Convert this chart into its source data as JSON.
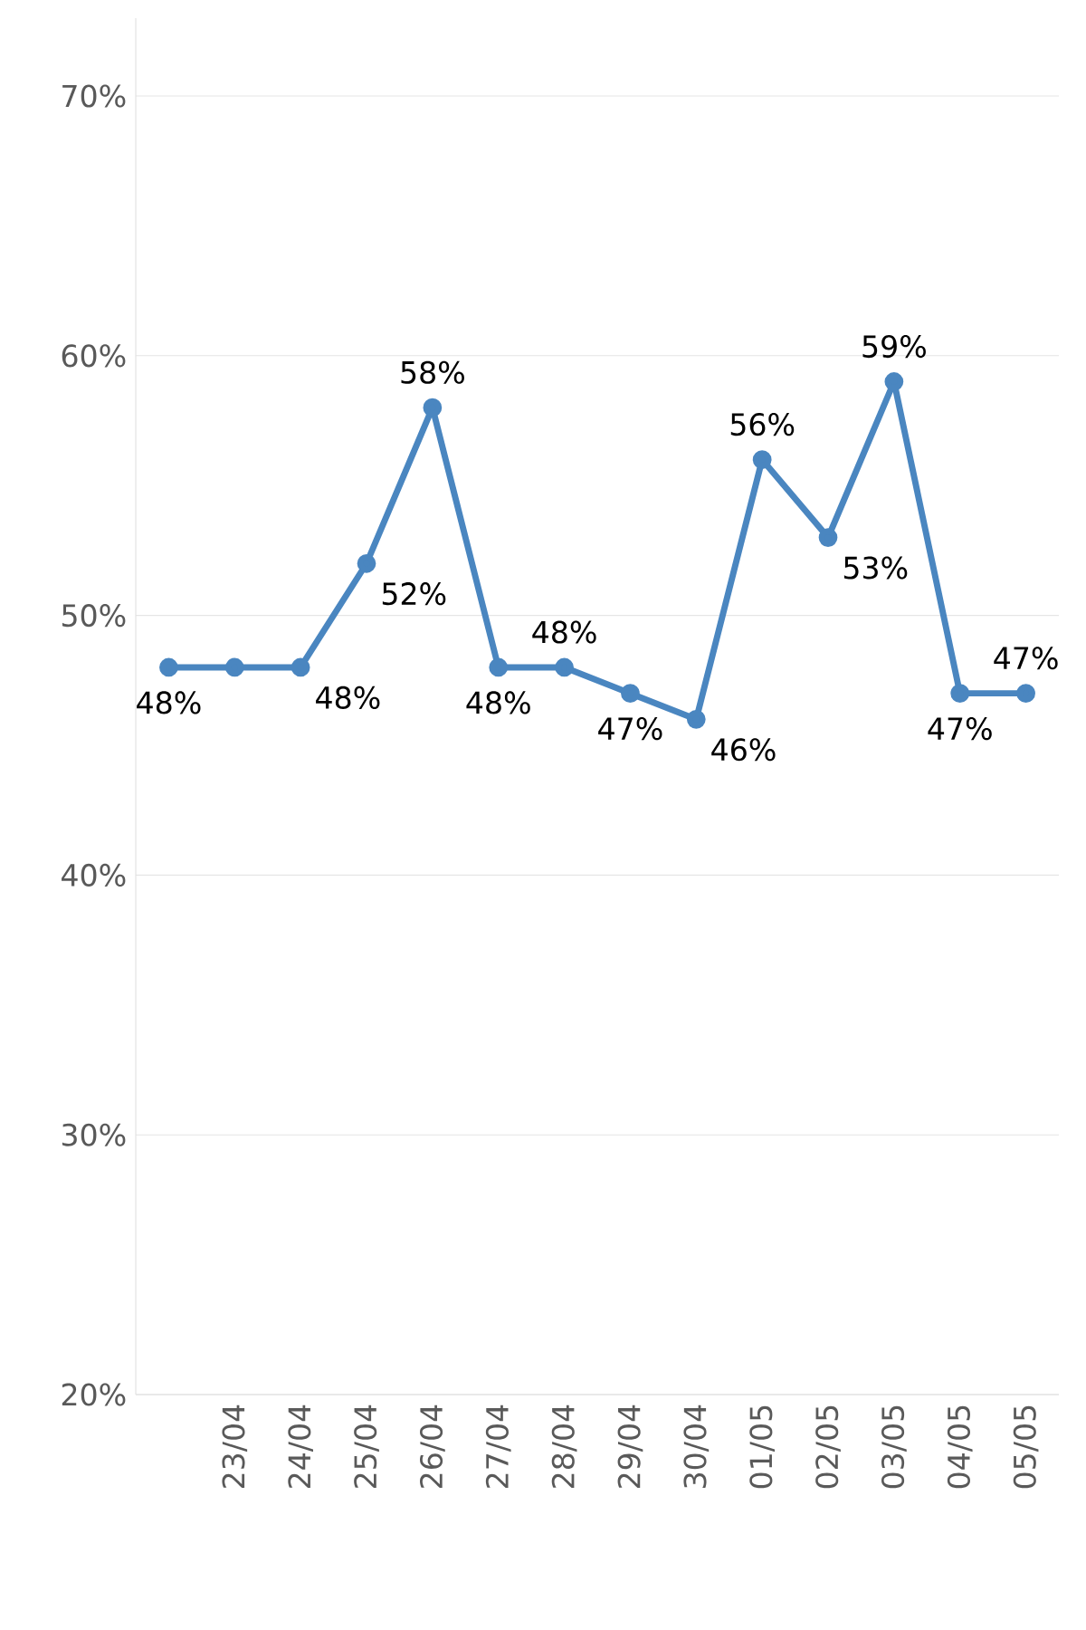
{
  "chart_data": {
    "type": "line",
    "categories": [
      null,
      "23/04",
      "24/04",
      "25/04",
      "26/04",
      "27/04",
      "28/04",
      "29/04",
      "30/04",
      "01/05",
      "02/05",
      "03/05",
      "04/05",
      "05/05"
    ],
    "values": [
      48,
      48,
      48,
      52,
      58,
      48,
      48,
      47,
      46,
      56,
      53,
      59,
      47,
      47
    ],
    "value_labels": [
      "48%",
      null,
      "48%",
      "52%",
      "58%",
      "48%",
      "48%",
      "47%",
      "46%",
      "56%",
      "53%",
      "59%",
      "47%",
      "47%"
    ],
    "color": "#4a86c0",
    "marker": "circle",
    "grid": "y",
    "ylim": [
      20,
      73
    ],
    "yticks": [
      {
        "value": 20,
        "label": "20%"
      },
      {
        "value": 30,
        "label": "30%"
      },
      {
        "value": 40,
        "label": "40%"
      },
      {
        "value": 50,
        "label": "50%"
      },
      {
        "value": 60,
        "label": "60%"
      },
      {
        "value": 70,
        "label": "70%"
      }
    ]
  }
}
